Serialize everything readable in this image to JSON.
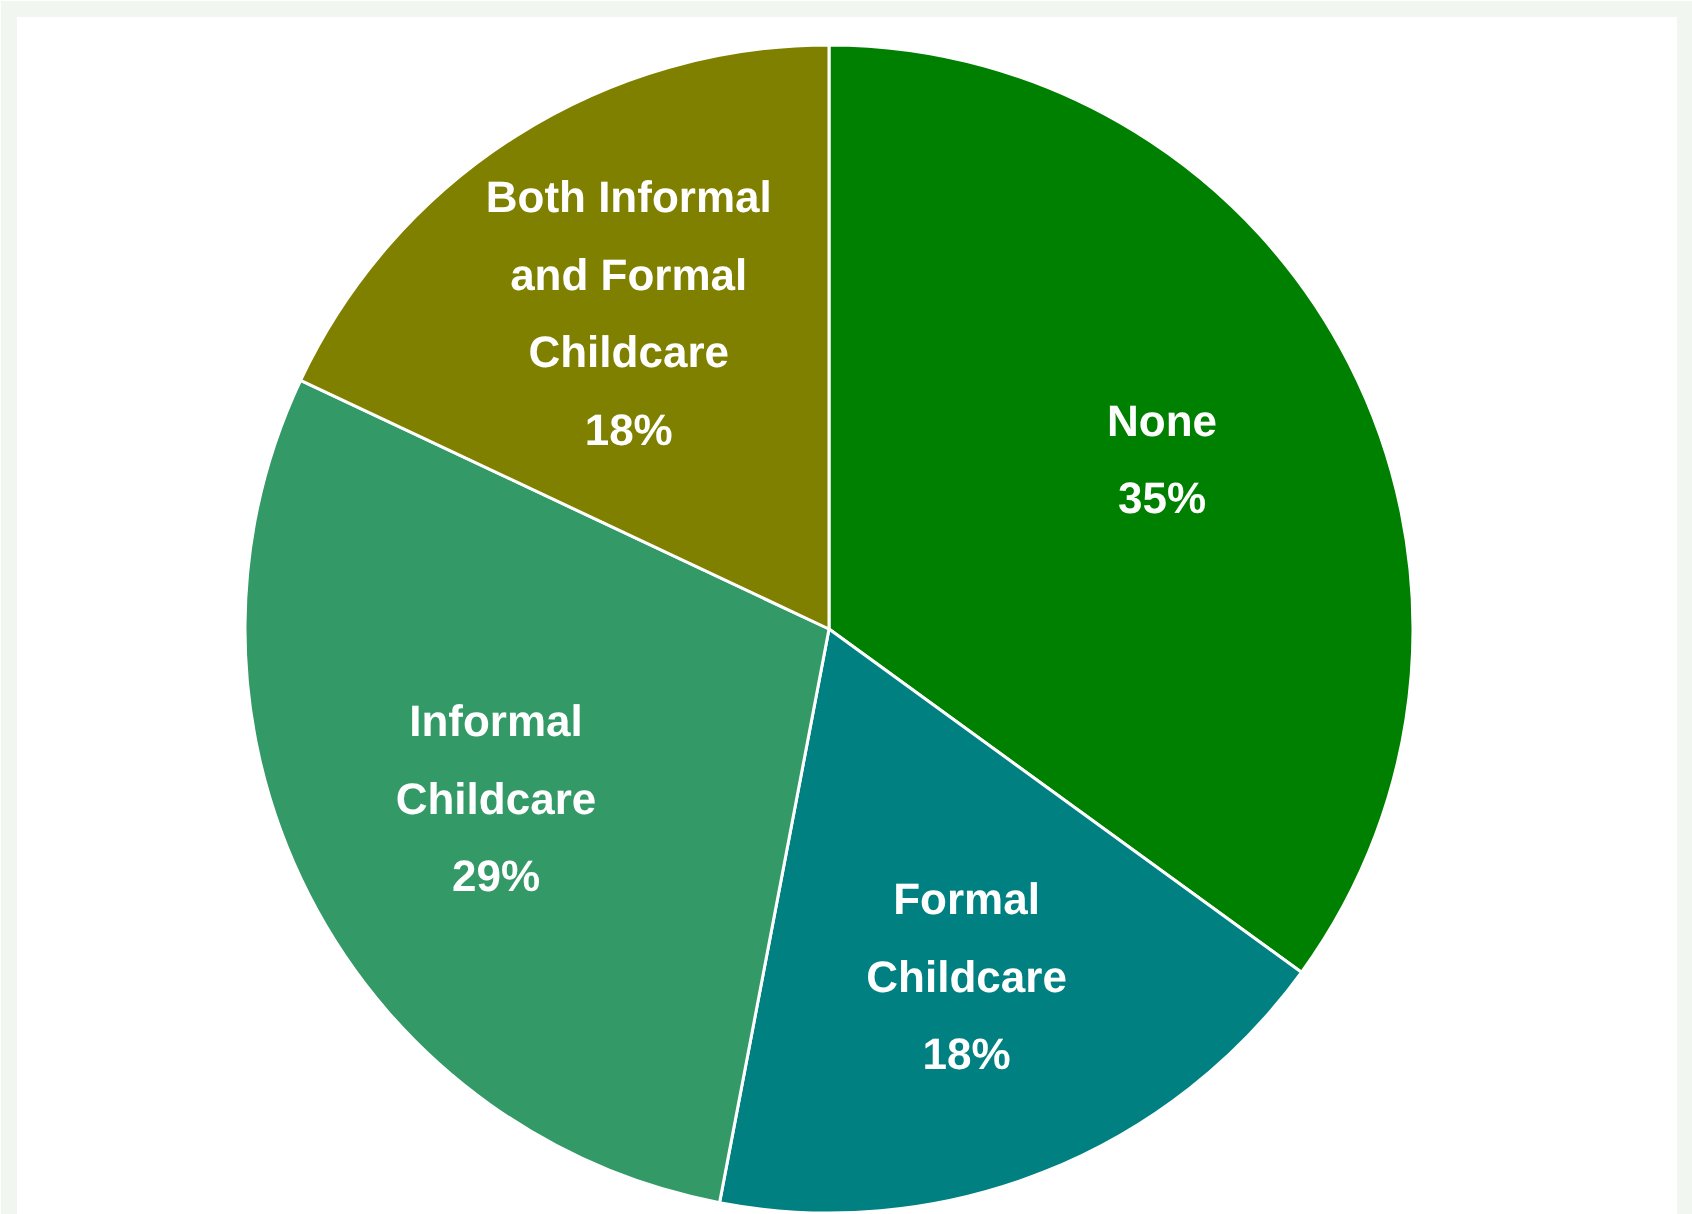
{
  "chart_data": {
    "type": "pie",
    "categories": [
      "None",
      "Formal Childcare",
      "Informal Childcare",
      "Both Informal and Formal Childcare"
    ],
    "values": [
      35,
      18,
      29,
      18
    ],
    "value_labels": [
      "35%",
      "18%",
      "29%",
      "18%"
    ],
    "colors": [
      "#008000",
      "#008080",
      "#339966",
      "#808000"
    ]
  }
}
